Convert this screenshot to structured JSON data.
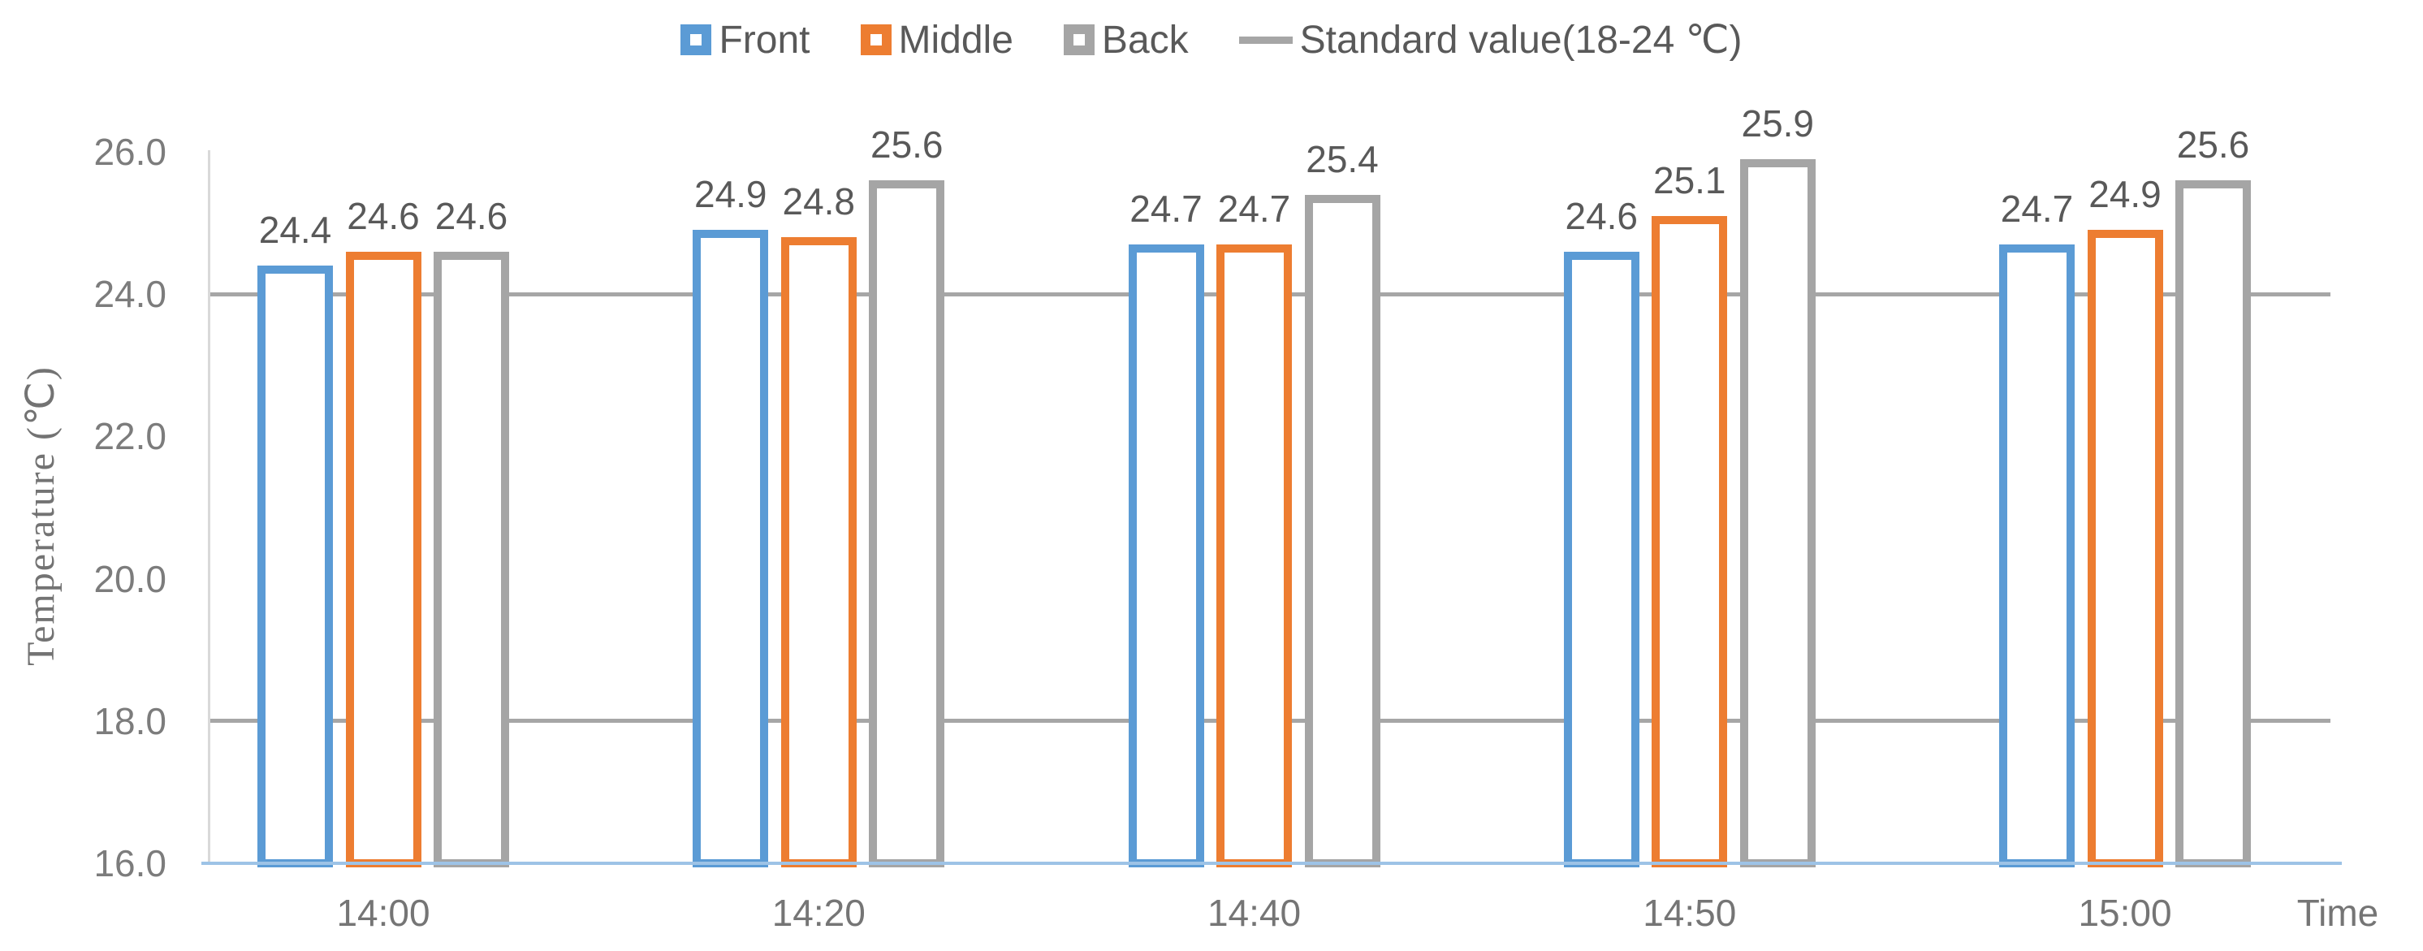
{
  "legend": {
    "items": [
      {
        "label": "Front",
        "marker": "square",
        "color": "#5b9bd5"
      },
      {
        "label": "Middle",
        "marker": "square",
        "color": "#ed7d31"
      },
      {
        "label": "Back",
        "marker": "square",
        "color": "#a5a5a5"
      },
      {
        "label": "Standard value(18-24 ℃)",
        "marker": "line",
        "color": "#a6a6a6"
      }
    ]
  },
  "chart_data": {
    "type": "bar",
    "title": "",
    "categories": [
      "14:00",
      "14:20",
      "14:40",
      "14:50",
      "15:00"
    ],
    "series": [
      {
        "name": "Front",
        "color": "#5b9bd5",
        "values": [
          24.4,
          24.9,
          24.7,
          24.6,
          24.7
        ]
      },
      {
        "name": "Middle",
        "color": "#ed7d31",
        "values": [
          24.6,
          24.8,
          24.7,
          25.1,
          24.9
        ]
      },
      {
        "name": "Back",
        "color": "#a5a5a5",
        "values": [
          24.6,
          25.6,
          25.4,
          25.9,
          25.6
        ]
      }
    ],
    "data_labels": [
      [
        "24.4",
        "24.9",
        "24.7",
        "24.6",
        "24.7"
      ],
      [
        "24.6",
        "24.8",
        "24.7",
        "25.1",
        "24.9"
      ],
      [
        "24.6",
        "25.6",
        "25.4",
        "25.9",
        "25.6"
      ]
    ],
    "reference_lines": [
      {
        "value": 18.0,
        "label": "Standard value(18-24 ℃)"
      },
      {
        "value": 24.0,
        "label": "Standard value(18-24 ℃)"
      }
    ],
    "ylabel": "Temperature (℃)",
    "xlabel": "Time",
    "ylim": [
      16.0,
      26.0
    ],
    "yticks": [
      {
        "value": 16.0,
        "label": "16.0"
      },
      {
        "value": 18.0,
        "label": "18.0"
      },
      {
        "value": 20.0,
        "label": "20.0"
      },
      {
        "value": 22.0,
        "label": "22.0"
      },
      {
        "value": 24.0,
        "label": "24.0"
      },
      {
        "value": 26.0,
        "label": "26.0"
      }
    ],
    "bar_style": "hollow-outline",
    "grid": "off",
    "legend_position": "top-center"
  },
  "colors": {
    "front": "#5b9bd5",
    "middle": "#ed7d31",
    "back": "#a5a5a5",
    "reference_line": "#a6a6a6",
    "x_axis": "#9dc3e6",
    "y_axis": "#d9d9d9",
    "tick_text": "#7c7c7c",
    "label_text": "#595959"
  }
}
